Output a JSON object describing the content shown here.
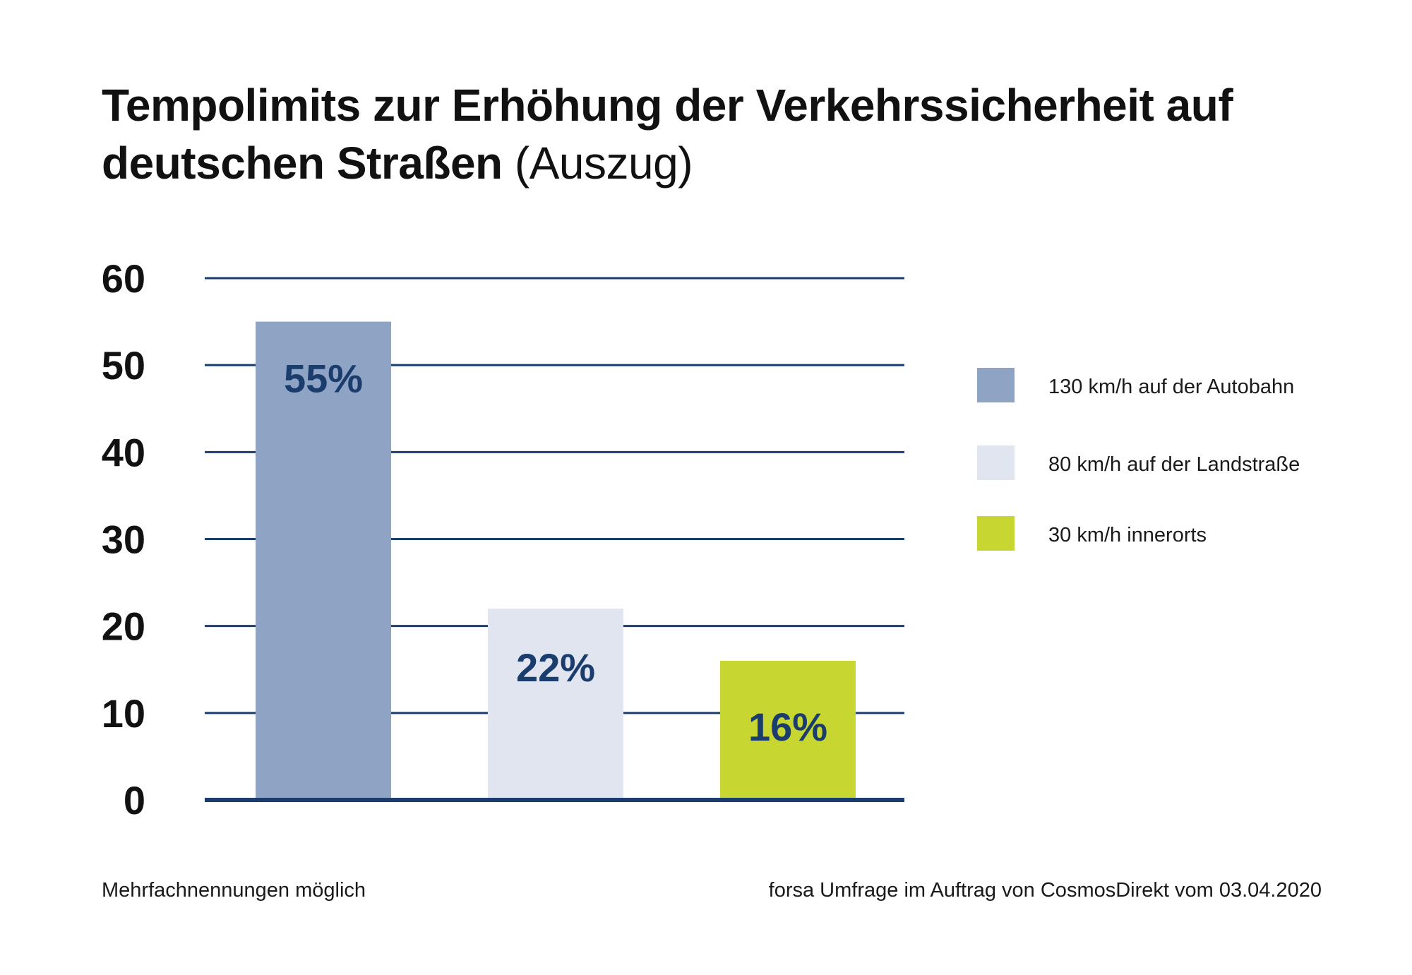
{
  "title": {
    "main": "Tempolimits zur Erhöhung der Verkehrssicherheit auf deutschen Straßen",
    "suffix": "(Auszug)"
  },
  "chart_data": {
    "type": "bar",
    "title": "Tempolimits zur Erhöhung der Verkehrssicherheit auf deutschen Straßen (Auszug)",
    "categories": [
      "130 km/h auf der Autobahn",
      "80 km/h auf der Landstraße",
      "30 km/h innerorts"
    ],
    "values": [
      55,
      22,
      16
    ],
    "data_labels": [
      "55%",
      "22%",
      "16%"
    ],
    "colors": [
      "#8fa3c5",
      "#e1e5f0",
      "#c8d632"
    ],
    "yticks": [
      0,
      10,
      20,
      30,
      40,
      50,
      60
    ],
    "ylim": [
      0,
      60
    ],
    "grid": true,
    "gridline_color": "#1a3d6e",
    "legend_position": "right",
    "xlabel": "",
    "ylabel": ""
  },
  "footnotes": {
    "left": "Mehrfachnennungen möglich",
    "right": "forsa Umfrage im Auftrag von CosmosDirekt vom 03.04.2020"
  }
}
